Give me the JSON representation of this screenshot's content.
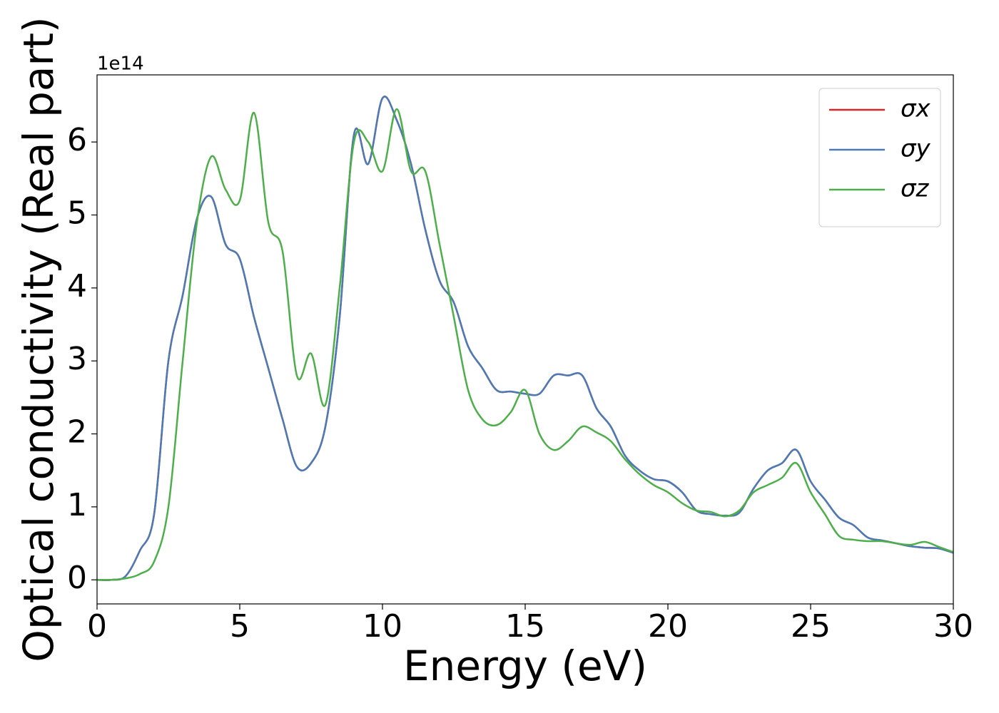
{
  "chart_data": {
    "type": "line",
    "xlabel": "Energy (eV)",
    "ylabel": "Optical conductivity (Real part)",
    "y_offset_label": "1e14",
    "x": [
      0,
      0.5,
      1,
      1.5,
      2,
      2.5,
      3,
      3.5,
      4,
      4.5,
      5,
      5.5,
      6,
      6.5,
      7,
      7.5,
      8,
      8.5,
      9,
      9.5,
      10,
      10.5,
      11,
      11.5,
      12,
      12.5,
      13,
      13.5,
      14,
      14.5,
      15,
      15.5,
      16,
      16.5,
      17,
      17.5,
      18,
      18.5,
      19,
      19.5,
      20,
      20.5,
      21,
      21.5,
      22,
      22.5,
      23,
      23.5,
      24,
      24.5,
      25,
      25.5,
      26,
      26.5,
      27,
      27.5,
      28,
      28.5,
      29,
      29.5,
      30
    ],
    "series": [
      {
        "name": "σx",
        "color": "#d62728",
        "values": [
          0,
          0,
          0.05,
          0.4,
          0.9,
          3.0,
          3.9,
          4.95,
          5.25,
          4.6,
          4.4,
          3.6,
          2.9,
          2.2,
          1.55,
          1.6,
          2.1,
          3.6,
          6.1,
          5.7,
          6.6,
          6.3,
          5.7,
          4.8,
          4.1,
          3.8,
          3.2,
          2.9,
          2.6,
          2.58,
          2.55,
          2.55,
          2.8,
          2.8,
          2.8,
          2.35,
          2.1,
          1.7,
          1.5,
          1.38,
          1.35,
          1.2,
          0.95,
          0.9,
          0.88,
          0.92,
          1.25,
          1.5,
          1.6,
          1.78,
          1.35,
          1.1,
          0.85,
          0.75,
          0.58,
          0.54,
          0.5,
          0.46,
          0.44,
          0.43,
          0.37
        ]
      },
      {
        "name": "σy",
        "color": "#4a7bb7",
        "values": [
          0,
          0,
          0.05,
          0.4,
          0.9,
          3.0,
          3.9,
          4.95,
          5.25,
          4.6,
          4.4,
          3.6,
          2.9,
          2.2,
          1.55,
          1.6,
          2.1,
          3.6,
          6.1,
          5.7,
          6.6,
          6.3,
          5.7,
          4.8,
          4.1,
          3.8,
          3.2,
          2.9,
          2.6,
          2.58,
          2.55,
          2.55,
          2.8,
          2.8,
          2.8,
          2.35,
          2.1,
          1.7,
          1.5,
          1.38,
          1.35,
          1.2,
          0.95,
          0.9,
          0.88,
          0.92,
          1.25,
          1.5,
          1.6,
          1.78,
          1.35,
          1.1,
          0.85,
          0.75,
          0.58,
          0.54,
          0.5,
          0.46,
          0.44,
          0.43,
          0.37
        ]
      },
      {
        "name": "σz",
        "color": "#4daf4a",
        "values": [
          0,
          0,
          0.02,
          0.08,
          0.25,
          1.0,
          3.0,
          4.9,
          5.8,
          5.35,
          5.2,
          6.4,
          4.9,
          4.5,
          2.8,
          3.1,
          2.4,
          4.0,
          6.0,
          6.0,
          5.6,
          6.45,
          5.6,
          5.6,
          4.6,
          3.6,
          2.6,
          2.2,
          2.12,
          2.3,
          2.6,
          2.0,
          1.78,
          1.9,
          2.1,
          2.02,
          1.9,
          1.65,
          1.45,
          1.3,
          1.2,
          1.05,
          0.95,
          0.93,
          0.87,
          0.95,
          1.2,
          1.3,
          1.4,
          1.6,
          1.2,
          0.9,
          0.6,
          0.55,
          0.53,
          0.53,
          0.5,
          0.48,
          0.52,
          0.45,
          0.38
        ]
      }
    ],
    "xlim": [
      0,
      30
    ],
    "xticks": [
      0,
      5,
      10,
      15,
      20,
      25,
      30
    ],
    "ylim": [
      -0.33,
      6.92
    ],
    "yticks": [
      0,
      1,
      2,
      3,
      4,
      5,
      6
    ],
    "legend": "upper right",
    "grid": false
  }
}
